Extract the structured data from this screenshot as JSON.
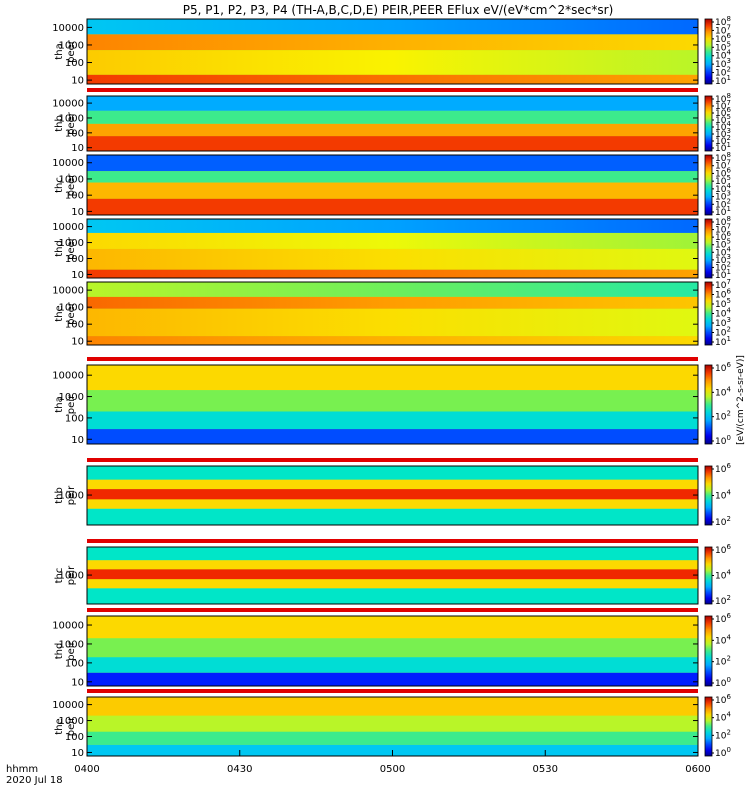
{
  "chart_data": {
    "type": "heatmap",
    "title": "P5, P1, P2, P3, P4 (TH-A,B,C,D,E) PEIR,PEER EFlux eV/(eV*cm^2*sec*sr)",
    "x_tick_labels": [
      "0400",
      "0430",
      "0500",
      "0530",
      "0600"
    ],
    "x_tick_values_min": [
      0,
      30,
      60,
      90,
      120
    ],
    "x_range_min": [
      0,
      120
    ],
    "x_caption_line1": "hhmm",
    "x_caption_line2": "2020 Jul 18",
    "colorbar_unit_text": "[eV/(cm^2-s-sr-eV)]",
    "panels": [
      {
        "probe": "tha",
        "line1": "tha",
        "line2": "peer",
        "yticks": [
          "10000",
          "1000",
          "100",
          "10"
        ],
        "ylog": true,
        "yrange": [
          6,
          30000
        ],
        "cb": [
          "10^8",
          "10^7",
          "10^6",
          "10^5",
          "10^4",
          "10^3",
          "10^2",
          "10^1"
        ],
        "gap": false,
        "bands": [
          {
            "lo": 4000,
            "hi": 30000,
            "level": 0.35
          },
          {
            "lo": 500,
            "hi": 4000,
            "level": 0.82
          },
          {
            "lo": 20,
            "hi": 500,
            "level": 0.72
          },
          {
            "lo": 6,
            "hi": 20,
            "level": 0.9
          }
        ],
        "drift": true
      },
      {
        "probe": "thb",
        "line1": "thb",
        "line2": "peer",
        "yticks": [
          "10000",
          "1000",
          "100",
          "10"
        ],
        "ylog": true,
        "yrange": [
          6,
          30000
        ],
        "cb": [
          "10^8",
          "10^7",
          "10^6",
          "10^5",
          "10^4",
          "10^3",
          "10^2",
          "10^1"
        ],
        "gap": true,
        "bands": [
          {
            "lo": 3000,
            "hi": 30000,
            "level": 0.3
          },
          {
            "lo": 400,
            "hi": 3000,
            "level": 0.5
          },
          {
            "lo": 60,
            "hi": 400,
            "level": 0.78
          },
          {
            "lo": 6,
            "hi": 60,
            "level": 0.9
          }
        ],
        "drift": false
      },
      {
        "probe": "thc",
        "line1": "thc",
        "line2": "peer",
        "yticks": [
          "10000",
          "1000",
          "100",
          "10"
        ],
        "ylog": true,
        "yrange": [
          6,
          30000
        ],
        "cb": [
          "10^8",
          "10^7",
          "10^6",
          "10^5",
          "10^4",
          "10^3",
          "10^2",
          "10^1"
        ],
        "gap": false,
        "bands": [
          {
            "lo": 3000,
            "hi": 30000,
            "level": 0.22
          },
          {
            "lo": 600,
            "hi": 3000,
            "level": 0.5
          },
          {
            "lo": 60,
            "hi": 600,
            "level": 0.75
          },
          {
            "lo": 6,
            "hi": 60,
            "level": 0.9
          }
        ],
        "drift": false
      },
      {
        "probe": "thd",
        "line1": "thd",
        "line2": "peer",
        "yticks": [
          "10000",
          "1000",
          "100",
          "10"
        ],
        "ylog": true,
        "yrange": [
          6,
          30000
        ],
        "cb": [
          "10^8",
          "10^7",
          "10^6",
          "10^5",
          "10^4",
          "10^3",
          "10^2",
          "10^1"
        ],
        "gap": false,
        "bands": [
          {
            "lo": 4000,
            "hi": 30000,
            "level": 0.35
          },
          {
            "lo": 400,
            "hi": 4000,
            "level": 0.7
          },
          {
            "lo": 20,
            "hi": 400,
            "level": 0.75
          },
          {
            "lo": 6,
            "hi": 20,
            "level": 0.9
          }
        ],
        "drift": true
      },
      {
        "probe": "the",
        "line1": "the",
        "line2": "peer",
        "yticks": [
          "10000",
          "1000",
          "100",
          "10"
        ],
        "ylog": true,
        "yrange": [
          6,
          30000
        ],
        "cb": [
          "10^7",
          "10^6",
          "10^5",
          "10^4",
          "10^3",
          "10^2",
          "10^1"
        ],
        "gap": false,
        "bands": [
          {
            "lo": 4000,
            "hi": 30000,
            "level": 0.6
          },
          {
            "lo": 800,
            "hi": 4000,
            "level": 0.85
          },
          {
            "lo": 20,
            "hi": 800,
            "level": 0.75
          },
          {
            "lo": 6,
            "hi": 20,
            "level": 0.82
          }
        ],
        "drift": true
      },
      {
        "probe": "tha",
        "line1": "tha",
        "line2": "peir",
        "yticks": [
          "10000",
          "1000",
          "100",
          "10"
        ],
        "ylog": true,
        "yrange": [
          6,
          30000
        ],
        "cb": [
          "10^6",
          "10^4",
          "10^2",
          "10^0"
        ],
        "gap": true,
        "bands": [
          {
            "lo": 2000,
            "hi": 30000,
            "level": 0.7
          },
          {
            "lo": 200,
            "hi": 2000,
            "level": 0.55
          },
          {
            "lo": 30,
            "hi": 200,
            "level": 0.42
          },
          {
            "lo": 6,
            "hi": 30,
            "level": 0.2
          }
        ],
        "drift": false
      },
      {
        "probe": "thb",
        "line1": "thb",
        "line2": "peir",
        "yticks": [
          "1000"
        ],
        "ylog": true,
        "yrange": [
          30,
          30000
        ],
        "cb": [
          "10^6",
          "10^4",
          "10^2"
        ],
        "gap": true,
        "bands": [
          {
            "lo": 6000,
            "hi": 30000,
            "level": 0.45
          },
          {
            "lo": 2000,
            "hi": 6000,
            "level": 0.7
          },
          {
            "lo": 600,
            "hi": 2000,
            "level": 0.92
          },
          {
            "lo": 200,
            "hi": 600,
            "level": 0.7
          },
          {
            "lo": 30,
            "hi": 200,
            "level": 0.45
          }
        ],
        "drift": false
      },
      {
        "probe": "thc",
        "line1": "thc",
        "line2": "peir",
        "yticks": [
          "1000"
        ],
        "ylog": true,
        "yrange": [
          30,
          30000
        ],
        "cb": [
          "10^6",
          "10^4",
          "10^2"
        ],
        "gap": true,
        "bands": [
          {
            "lo": 6000,
            "hi": 30000,
            "level": 0.45
          },
          {
            "lo": 2000,
            "hi": 6000,
            "level": 0.7
          },
          {
            "lo": 600,
            "hi": 2000,
            "level": 0.92
          },
          {
            "lo": 200,
            "hi": 600,
            "level": 0.7
          },
          {
            "lo": 30,
            "hi": 200,
            "level": 0.45
          }
        ],
        "drift": false
      },
      {
        "probe": "thd",
        "line1": "thd",
        "line2": "peir",
        "yticks": [
          "10000",
          "1000",
          "100",
          "10"
        ],
        "ylog": true,
        "yrange": [
          6,
          30000
        ],
        "cb": [
          "10^6",
          "10^4",
          "10^2",
          "10^0"
        ],
        "gap": true,
        "bands": [
          {
            "lo": 2000,
            "hi": 30000,
            "level": 0.7
          },
          {
            "lo": 200,
            "hi": 2000,
            "level": 0.55
          },
          {
            "lo": 30,
            "hi": 200,
            "level": 0.42
          },
          {
            "lo": 6,
            "hi": 30,
            "level": 0.15
          }
        ],
        "drift": false
      },
      {
        "probe": "the",
        "line1": "the",
        "line2": "peir",
        "yticks": [
          "10000",
          "1000",
          "100",
          "10"
        ],
        "ylog": true,
        "yrange": [
          6,
          30000
        ],
        "cb": [
          "10^6",
          "10^4",
          "10^2",
          "10^0"
        ],
        "gap": true,
        "bands": [
          {
            "lo": 2000,
            "hi": 30000,
            "level": 0.72
          },
          {
            "lo": 200,
            "hi": 2000,
            "level": 0.6
          },
          {
            "lo": 30,
            "hi": 200,
            "level": 0.5
          },
          {
            "lo": 6,
            "hi": 30,
            "level": 0.35
          }
        ],
        "drift": false
      }
    ]
  }
}
